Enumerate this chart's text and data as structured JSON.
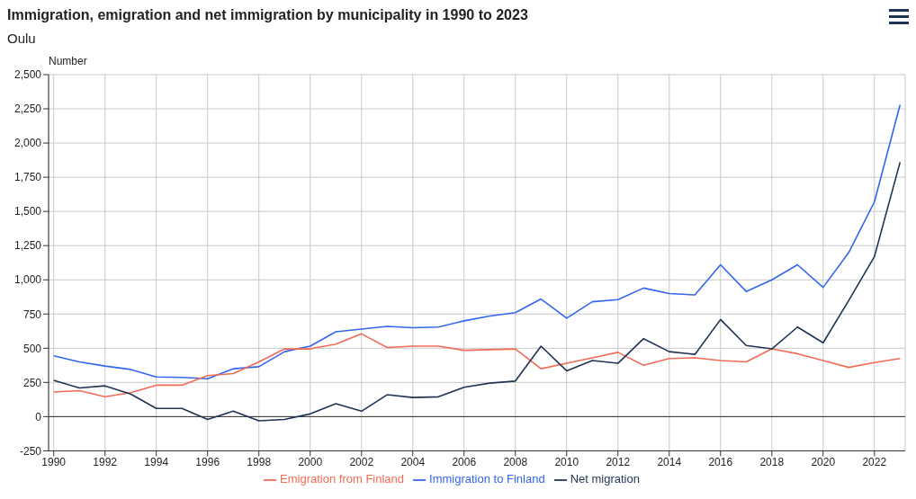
{
  "chart_data": {
    "type": "line",
    "title": "Immigration, emigration and net immigration by municipality in 1990 to 2023",
    "subtitle": "Oulu",
    "ylabel": "Number",
    "x": [
      1990,
      1991,
      1992,
      1993,
      1994,
      1995,
      1996,
      1997,
      1998,
      1999,
      2000,
      2001,
      2002,
      2003,
      2004,
      2005,
      2006,
      2007,
      2008,
      2009,
      2010,
      2011,
      2012,
      2013,
      2014,
      2015,
      2016,
      2017,
      2018,
      2019,
      2020,
      2021,
      2022,
      2023
    ],
    "series": [
      {
        "name": "Immigration to Finland",
        "color": "#3366ee",
        "values": [
          445,
          400,
          370,
          345,
          290,
          287,
          277,
          350,
          365,
          475,
          515,
          620,
          640,
          660,
          650,
          655,
          700,
          735,
          760,
          860,
          720,
          840,
          855,
          940,
          900,
          890,
          1110,
          915,
          1000,
          1110,
          945,
          1200,
          1570,
          2280
        ]
      },
      {
        "name": "Emigration from Finland",
        "color": "#f26b55",
        "values": [
          180,
          190,
          145,
          175,
          230,
          230,
          300,
          315,
          400,
          495,
          495,
          530,
          605,
          505,
          515,
          515,
          485,
          490,
          495,
          350,
          390,
          430,
          470,
          375,
          425,
          430,
          410,
          400,
          495,
          460,
          410,
          360,
          395,
          425
        ]
      },
      {
        "name": "Net migration",
        "color": "#1f3354",
        "values": [
          265,
          210,
          225,
          165,
          60,
          60,
          -20,
          40,
          -30,
          -20,
          20,
          95,
          40,
          160,
          140,
          145,
          215,
          245,
          260,
          515,
          335,
          410,
          390,
          570,
          475,
          455,
          710,
          520,
          495,
          655,
          540,
          850,
          1170,
          1860
        ]
      }
    ],
    "xlim": [
      1989.8,
      2023.2
    ],
    "xticks": [
      1990,
      1992,
      1994,
      1996,
      1998,
      2000,
      2002,
      2004,
      2006,
      2008,
      2010,
      2012,
      2014,
      2016,
      2018,
      2020,
      2022
    ],
    "ylim": [
      -250,
      2500
    ],
    "yticks": [
      -250,
      0,
      250,
      500,
      750,
      {
        "value": 1000,
        "label": "1,000"
      },
      {
        "value": 1250,
        "label": "1,250"
      },
      {
        "value": 1500,
        "label": "1,500"
      },
      {
        "value": 1750,
        "label": "1,750"
      },
      {
        "value": 2000,
        "label": "2,000"
      },
      {
        "value": 2250,
        "label": "2,250"
      },
      {
        "value": 2500,
        "label": "2,500"
      }
    ],
    "grid": true,
    "legend": "bottom",
    "marker": "none",
    "line_style": "solid"
  }
}
